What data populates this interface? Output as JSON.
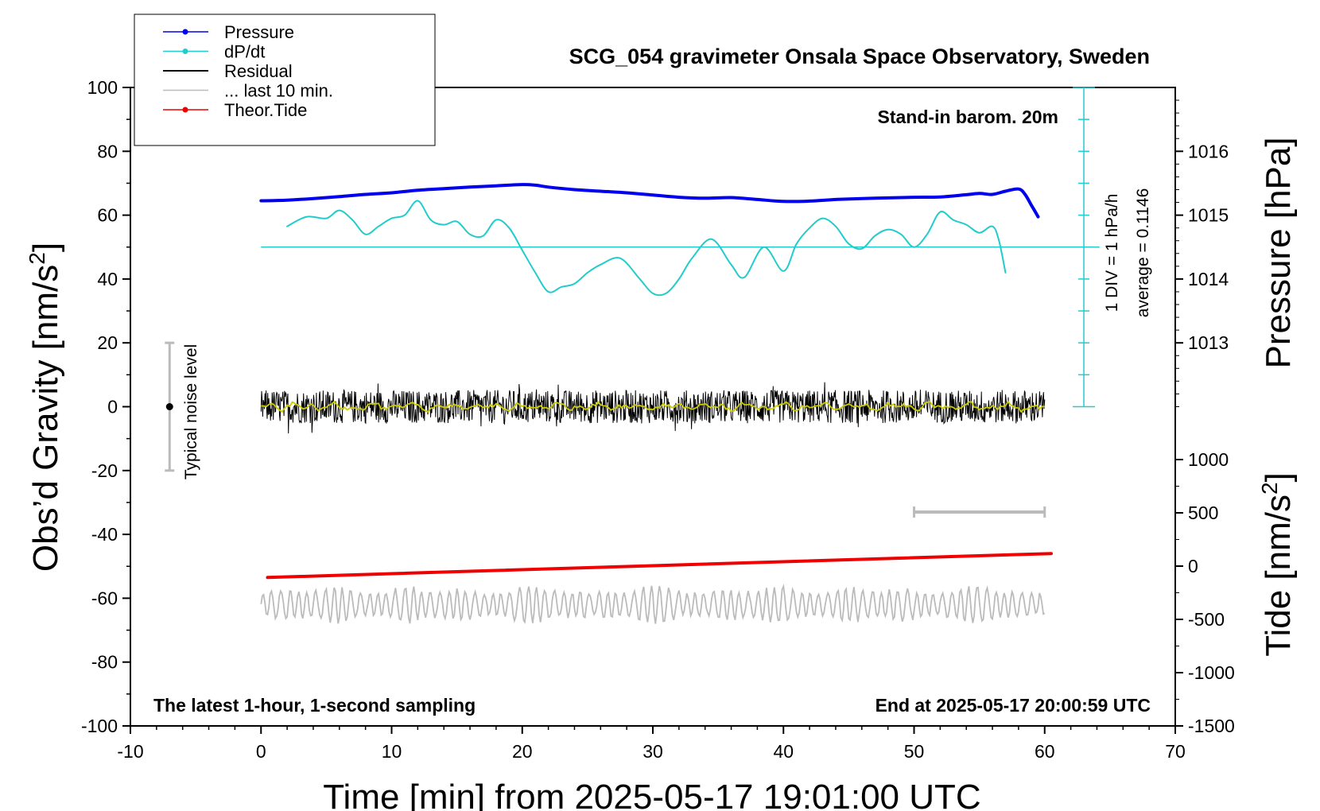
{
  "chart_data": {
    "type": "line",
    "title": "SCG_054 gravimeter Onsala Space Observatory, Sweden",
    "xlabel": "Time [min] from 2025-05-17 19:01:00 UTC",
    "xlim": [
      -10,
      70
    ],
    "xticks": [
      "-10",
      "0",
      "10",
      "20",
      "30",
      "40",
      "50",
      "60",
      "70"
    ],
    "left_axis": {
      "label": "Obs’d Gravity [nm/s",
      "label_sup": "2",
      "label_close": "]",
      "ylim": [
        -100,
        100
      ],
      "ticks": [
        "100",
        "80",
        "60",
        "40",
        "20",
        "0",
        "-20",
        "-40",
        "-60",
        "-80",
        "-100"
      ]
    },
    "right_axis_pressure": {
      "label": "Pressure [hPa]",
      "ticks": [
        "1016",
        "1015",
        "1014",
        "1013"
      ],
      "div_label": "1 DIV = 1 hPa/h",
      "average_label": "average = 0.1146"
    },
    "right_axis_tide": {
      "label": "Tide [nm/s",
      "label_sup": "2",
      "label_close": "]",
      "ticks": [
        "1000",
        "500",
        "0",
        "-500",
        "-1000",
        "-1500"
      ]
    },
    "legend": {
      "position": "top-left",
      "entries": [
        {
          "name": "Pressure",
          "color": "#0000ee",
          "marker": true
        },
        {
          "name": "dP/dt",
          "color": "#22cccc",
          "marker": true
        },
        {
          "name": "Residual",
          "color": "#000000",
          "marker": false
        },
        {
          "name": "... last 10 min.",
          "color": "#bbbbbb",
          "marker": false
        },
        {
          "name": "Theor.Tide",
          "color": "#ee0000",
          "marker": true
        }
      ]
    },
    "annotations": {
      "barometer": "Stand-in barom. 20m",
      "latest": "The latest 1-hour, 1-second sampling",
      "end": "End at 2025-05-17 20:00:59 UTC",
      "noise": "Typical noise level"
    },
    "series": [
      {
        "name": "Pressure",
        "color": "#0000ee",
        "units": "gravity-axis position",
        "x": [
          0,
          2,
          4,
          6,
          8,
          10,
          12,
          14,
          16,
          18,
          20,
          21,
          22,
          24,
          26,
          28,
          30,
          32,
          34,
          36,
          38,
          40,
          42,
          44,
          46,
          48,
          50,
          52,
          54,
          55,
          56,
          57,
          58,
          58.5,
          59,
          59.5
        ],
        "y": [
          64.5,
          64.7,
          65.2,
          65.8,
          66.5,
          67.0,
          67.8,
          68.3,
          68.8,
          69.2,
          69.6,
          69.4,
          68.8,
          68.0,
          67.5,
          67.0,
          66.3,
          65.6,
          65.3,
          65.5,
          64.9,
          64.3,
          64.4,
          64.9,
          65.2,
          65.4,
          65.6,
          65.7,
          66.4,
          66.8,
          66.5,
          67.5,
          68.2,
          66.5,
          63.0,
          59.5
        ]
      },
      {
        "name": "dP/dt",
        "color": "#22cccc",
        "units": "gravity-axis position",
        "x": [
          2,
          3.5,
          5,
          6,
          7,
          8,
          9,
          10,
          11,
          12,
          13,
          14,
          15,
          16,
          17,
          18,
          19,
          20,
          21,
          22,
          23,
          24,
          25,
          26,
          27.5,
          29,
          30,
          31,
          32,
          33,
          34.5,
          36,
          37,
          38.5,
          40,
          41,
          42,
          43,
          44,
          45,
          46,
          47,
          48,
          49,
          50,
          51,
          52,
          53,
          54,
          55,
          56,
          56.5,
          57
        ],
        "y": [
          56.5,
          59.5,
          59.0,
          61.5,
          58.5,
          54.0,
          56.5,
          59.0,
          60.0,
          64.5,
          58.5,
          57.0,
          58.0,
          54.0,
          53.5,
          58.5,
          56.0,
          49.0,
          42.0,
          36.0,
          37.5,
          38.5,
          42.0,
          44.5,
          46.5,
          40.0,
          35.5,
          35.5,
          40.0,
          46.5,
          52.5,
          44.5,
          40.5,
          50.0,
          42.5,
          51.0,
          56.0,
          59.0,
          56.5,
          51.0,
          49.5,
          53.5,
          55.5,
          54.0,
          50.0,
          54.0,
          61.0,
          58.5,
          57.0,
          54.5,
          56.5,
          52.0,
          42.0
        ]
      },
      {
        "name": "Theor.Tide",
        "color": "#ee0000",
        "units": "gravity-axis position",
        "x": [
          0.5,
          60.5
        ],
        "y": [
          -53.5,
          -46.0
        ]
      }
    ],
    "residual_band": {
      "x_range": [
        0,
        60
      ],
      "center": 0,
      "amplitude": 7
    },
    "last10_band": {
      "x_range": [
        0,
        60
      ],
      "center": -62,
      "amplitude": 6
    },
    "average_line_y": 50,
    "pressure_scale_bar": {
      "x": 63,
      "y_range": [
        0,
        100
      ]
    },
    "noise_bar": {
      "x": -7,
      "y_range": [
        -20,
        20
      ]
    },
    "tide_scale_bar": {
      "x_range": [
        50,
        60
      ],
      "y": -33
    }
  }
}
